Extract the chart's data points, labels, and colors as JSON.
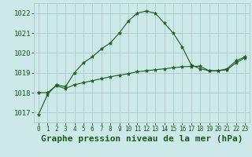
{
  "background_color": "#cce8e8",
  "grid_color": "#aacccc",
  "line_color": "#1a5c1a",
  "marker_color": "#1a5c1a",
  "title": "Graphe pression niveau de la mer (hPa)",
  "ylim": [
    1016.5,
    1022.5
  ],
  "xlim": [
    -0.5,
    23.5
  ],
  "yticks": [
    1017,
    1018,
    1019,
    1020,
    1021,
    1022
  ],
  "xticks": [
    0,
    1,
    2,
    3,
    4,
    5,
    6,
    7,
    8,
    9,
    10,
    11,
    12,
    13,
    14,
    15,
    16,
    17,
    18,
    19,
    20,
    21,
    22,
    23
  ],
  "series1_x": [
    0,
    1,
    2,
    3,
    4,
    5,
    6,
    7,
    8,
    9,
    10,
    11,
    12,
    13,
    14,
    15,
    16,
    17,
    18,
    19,
    20,
    21,
    22,
    23
  ],
  "series1_y": [
    1016.9,
    1017.9,
    1018.4,
    1018.3,
    1019.0,
    1019.5,
    1019.8,
    1020.2,
    1020.5,
    1021.0,
    1021.6,
    1022.0,
    1022.1,
    1022.0,
    1021.5,
    1021.0,
    1020.3,
    1019.4,
    1019.2,
    1019.1,
    1019.1,
    1019.2,
    1019.6,
    1019.8
  ],
  "series2_x": [
    0,
    1,
    2,
    3,
    4,
    5,
    6,
    7,
    8,
    9,
    10,
    11,
    12,
    13,
    14,
    15,
    16,
    17,
    18,
    19,
    20,
    21,
    22,
    23
  ],
  "series2_y": [
    1018.0,
    1018.0,
    1018.35,
    1018.2,
    1018.4,
    1018.5,
    1018.6,
    1018.7,
    1018.8,
    1018.88,
    1018.95,
    1019.05,
    1019.1,
    1019.15,
    1019.2,
    1019.25,
    1019.3,
    1019.32,
    1019.33,
    1019.1,
    1019.1,
    1019.15,
    1019.5,
    1019.75
  ],
  "title_fontsize": 8,
  "tick_fontsize": 6.5,
  "xtick_fontsize": 5.5
}
